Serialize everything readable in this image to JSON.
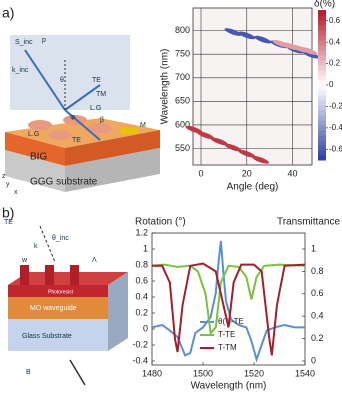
{
  "panel_labels": [
    "a)",
    "b)"
  ],
  "diagram_a": {
    "labels": [
      "S_inc",
      "p",
      "k_inc",
      "θ",
      "TE",
      "TM",
      "L.G",
      "Φ",
      "β",
      "TE",
      "L.G",
      "M",
      "BIG",
      "GGG substrate",
      "x",
      "y",
      "z"
    ]
  },
  "diagram_b": {
    "labels": [
      "TE",
      "k",
      "θ_inc",
      "w",
      "Λ",
      "Photoresist",
      "MO waveguide",
      "Glass Substrate",
      "B"
    ]
  },
  "chart_data": [
    {
      "type": "heatmap",
      "xlabel": "Angle (deg)",
      "ylabel": "Wavelength (nm)",
      "colorbar_label": "δ(%)",
      "xlim": [
        -3.5,
        48.5
      ],
      "ylim": [
        515,
        848
      ],
      "xticks": [
        0,
        20,
        40
      ],
      "yticks": [
        550,
        600,
        650,
        700,
        750,
        800
      ],
      "clim": [
        -0.7,
        0.7
      ],
      "cticks": [
        -0.6,
        -0.4,
        -0.2,
        0,
        0.2,
        0.4,
        0.6
      ],
      "grid": true,
      "bands": [
        {
          "x": [
            14,
            20,
            27,
            34,
            41,
            48
          ],
          "y": [
            797,
            790,
            781,
            771,
            760,
            749
          ],
          "value": -0.6
        },
        {
          "x": [
            35,
            39,
            43,
            47
          ],
          "y": [
            772,
            767,
            762,
            757
          ],
          "value": 0.3
        },
        {
          "x": [
            -3,
            2,
            8,
            14,
            20,
            26
          ],
          "y": [
            590,
            578,
            565,
            552,
            539,
            526
          ],
          "value": 0.6
        }
      ]
    },
    {
      "type": "line",
      "xlabel": "Wavelength (nm)",
      "ylabel": "Rotation (°)",
      "y2label": "Transmittance",
      "xlim": [
        1480,
        1540
      ],
      "xticks": [
        1480,
        1500,
        1520,
        1540
      ],
      "ylim": [
        -0.45,
        1.2
      ],
      "yticks": [
        -0.4,
        -0.2,
        0,
        0.2,
        0.4,
        0.6,
        0.8,
        1,
        1.2
      ],
      "y2lim": [
        -0.036,
        1.143
      ],
      "y2ticks": [
        0,
        0.2,
        0.4,
        0.6,
        0.8,
        1
      ],
      "series": [
        {
          "name": "θ(°)-TE",
          "color": "#5b8fd1",
          "x": [
            1480,
            1484,
            1487,
            1490,
            1493,
            1495,
            1497,
            1500,
            1503,
            1505,
            1506,
            1507,
            1508,
            1509,
            1511,
            1514,
            1517,
            1519,
            1521,
            1523,
            1525,
            1528,
            1532,
            1536,
            1540
          ],
          "values": [
            0.02,
            0.05,
            -0.02,
            -0.1,
            -0.33,
            -0.3,
            -0.05,
            0.02,
            0.15,
            0.45,
            0.8,
            1.1,
            0.7,
            0.35,
            0.12,
            0.05,
            0.02,
            -0.15,
            -0.38,
            -0.2,
            -0.02,
            0.02,
            0.05,
            0.02,
            0.02
          ]
        },
        {
          "name": "T-TE",
          "color": "#79c141",
          "axis": "y2",
          "x": [
            1480,
            1485,
            1490,
            1495,
            1498,
            1501,
            1503,
            1505,
            1507,
            1510,
            1514,
            1517,
            1519,
            1521,
            1524,
            1530,
            1540
          ],
          "values": [
            0.85,
            0.86,
            0.84,
            0.85,
            0.8,
            0.6,
            0.25,
            0.3,
            0.7,
            0.85,
            0.84,
            0.75,
            0.55,
            0.75,
            0.85,
            0.86,
            0.85
          ]
        },
        {
          "name": "T-TM",
          "color": "#a31f2a",
          "axis": "y2",
          "x": [
            1480,
            1484,
            1487,
            1489,
            1490,
            1492,
            1495,
            1500,
            1505,
            1508,
            1510,
            1512,
            1515,
            1520,
            1523,
            1526,
            1527,
            1529,
            1532,
            1540
          ],
          "values": [
            0.85,
            0.85,
            0.7,
            0.2,
            0.08,
            0.5,
            0.85,
            0.87,
            0.8,
            0.5,
            0.3,
            0.7,
            0.86,
            0.86,
            0.8,
            0.2,
            0.05,
            0.5,
            0.85,
            0.86
          ]
        }
      ]
    }
  ]
}
